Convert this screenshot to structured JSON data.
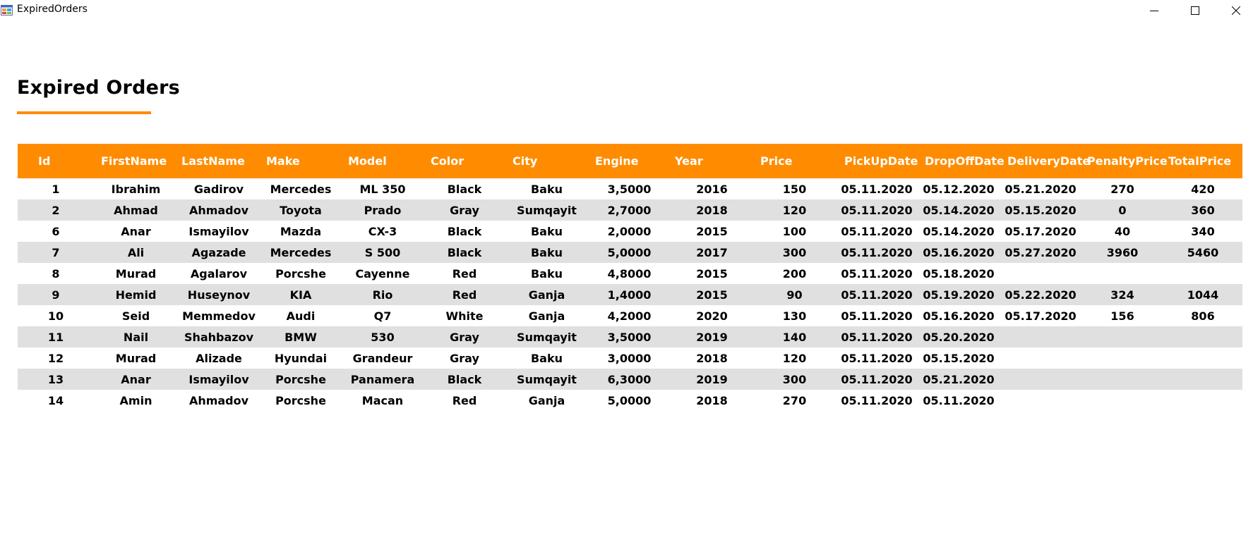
{
  "window": {
    "title": "ExpiredOrders",
    "controls": [
      "minimize-icon",
      "maximize-icon",
      "close-icon"
    ]
  },
  "page": {
    "title": "Expired Orders",
    "accent_color": "#ff8c00"
  },
  "table": {
    "header_color": "#ff8c00",
    "alt_row_color": "#e0e0e0",
    "columns": [
      "Id",
      "FirstName",
      "LastName",
      "Make",
      "Model",
      "Color",
      "City",
      "Engine",
      "Year",
      "Price",
      "PickUpDate",
      "DropOffDate",
      "DeliveryDate",
      "PenaltyPrice",
      "TotalPrice"
    ],
    "rows": [
      [
        "1",
        "Ibrahim",
        "Gadirov",
        "Mercedes",
        "ML 350",
        "Black",
        "Baku",
        "3,5000",
        "2016",
        "150",
        "05.11.2020",
        "05.12.2020",
        "05.21.2020",
        "270",
        "420"
      ],
      [
        "2",
        "Ahmad",
        "Ahmadov",
        "Toyota",
        "Prado",
        "Gray",
        "Sumqayit",
        "2,7000",
        "2018",
        "120",
        "05.11.2020",
        "05.14.2020",
        "05.15.2020",
        "0",
        "360"
      ],
      [
        "6",
        "Anar",
        "Ismayilov",
        "Mazda",
        "CX-3",
        "Black",
        "Baku",
        "2,0000",
        "2015",
        "100",
        "05.11.2020",
        "05.14.2020",
        "05.17.2020",
        "40",
        "340"
      ],
      [
        "7",
        "Ali",
        "Agazade",
        "Mercedes",
        "S 500",
        "Black",
        "Baku",
        "5,0000",
        "2017",
        "300",
        "05.11.2020",
        "05.16.2020",
        "05.27.2020",
        "3960",
        "5460"
      ],
      [
        "8",
        "Murad",
        "Agalarov",
        "Porcshe",
        "Cayenne",
        "Red",
        "Baku",
        "4,8000",
        "2015",
        "200",
        "05.11.2020",
        "05.18.2020",
        "",
        "",
        ""
      ],
      [
        "9",
        "Hemid",
        "Huseynov",
        "KIA",
        "Rio",
        "Red",
        "Ganja",
        "1,4000",
        "2015",
        "90",
        "05.11.2020",
        "05.19.2020",
        "05.22.2020",
        "324",
        "1044"
      ],
      [
        "10",
        "Seid",
        "Memmedov",
        "Audi",
        "Q7",
        "White",
        "Ganja",
        "4,2000",
        "2020",
        "130",
        "05.11.2020",
        "05.16.2020",
        "05.17.2020",
        "156",
        "806"
      ],
      [
        "11",
        "Nail",
        "Shahbazov",
        "BMW",
        "530",
        "Gray",
        "Sumqayit",
        "3,5000",
        "2019",
        "140",
        "05.11.2020",
        "05.20.2020",
        "",
        "",
        ""
      ],
      [
        "12",
        "Murad",
        "Alizade",
        "Hyundai",
        "Grandeur",
        "Gray",
        "Baku",
        "3,0000",
        "2018",
        "120",
        "05.11.2020",
        "05.15.2020",
        "",
        "",
        ""
      ],
      [
        "13",
        "Anar",
        "Ismayilov",
        "Porcshe",
        "Panamera",
        "Black",
        "Sumqayit",
        "6,3000",
        "2019",
        "300",
        "05.11.2020",
        "05.21.2020",
        "",
        "",
        ""
      ],
      [
        "14",
        "Amin",
        "Ahmadov",
        "Porcshe",
        "Macan",
        "Red",
        "Ganja",
        "5,0000",
        "2018",
        "270",
        "05.11.2020",
        "05.11.2020",
        "",
        "",
        ""
      ]
    ]
  }
}
